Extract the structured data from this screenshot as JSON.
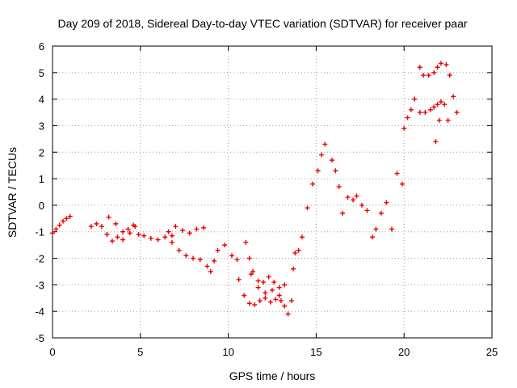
{
  "chart_data": {
    "type": "scatter",
    "title": "Day 209 of 2018, Sidereal Day-to-day VTEC variation (SDTVAR) for receiver paar",
    "xlabel": "GPS time / hours",
    "ylabel": "SDTVAR / TECUs",
    "xlim": [
      0,
      25
    ],
    "ylim": [
      -5,
      6
    ],
    "xticks": [
      "0",
      "5",
      "10",
      "15",
      "20",
      "25"
    ],
    "yticks": [
      "-5",
      "-4",
      "-3",
      "-2",
      "-1",
      "0",
      "1",
      "2",
      "3",
      "4",
      "5",
      "6"
    ],
    "grid": true,
    "marker": "+",
    "series": [
      {
        "name": "SDTVAR",
        "color": "#ee0000",
        "points": [
          [
            0.0,
            -1.05
          ],
          [
            0.2,
            -0.9
          ],
          [
            0.4,
            -0.75
          ],
          [
            0.6,
            -0.6
          ],
          [
            0.8,
            -0.5
          ],
          [
            1.0,
            -0.42
          ],
          [
            2.2,
            -0.8
          ],
          [
            2.5,
            -0.7
          ],
          [
            2.8,
            -0.8
          ],
          [
            3.1,
            -1.1
          ],
          [
            3.4,
            -1.35
          ],
          [
            3.7,
            -1.2
          ],
          [
            4.0,
            -1.0
          ],
          [
            4.3,
            -0.9
          ],
          [
            4.6,
            -0.75
          ],
          [
            4.9,
            -1.1
          ],
          [
            3.2,
            -0.45
          ],
          [
            3.6,
            -0.7
          ],
          [
            4.0,
            -1.3
          ],
          [
            4.4,
            -1.05
          ],
          [
            4.7,
            -0.8
          ],
          [
            5.2,
            -1.15
          ],
          [
            5.6,
            -1.25
          ],
          [
            6.0,
            -1.3
          ],
          [
            6.4,
            -1.2
          ],
          [
            6.8,
            -1.15
          ],
          [
            6.6,
            -1.0
          ],
          [
            7.0,
            -0.8
          ],
          [
            7.4,
            -0.95
          ],
          [
            7.8,
            -1.05
          ],
          [
            8.2,
            -0.9
          ],
          [
            8.6,
            -0.85
          ],
          [
            6.8,
            -1.4
          ],
          [
            7.2,
            -1.7
          ],
          [
            7.6,
            -1.9
          ],
          [
            8.0,
            -2.0
          ],
          [
            8.4,
            -2.05
          ],
          [
            8.8,
            -2.3
          ],
          [
            9.2,
            -2.1
          ],
          [
            9.0,
            -2.5
          ],
          [
            9.4,
            -1.7
          ],
          [
            9.8,
            -1.5
          ],
          [
            10.2,
            -1.9
          ],
          [
            10.5,
            -2.05
          ],
          [
            10.6,
            -2.8
          ],
          [
            10.9,
            -3.4
          ],
          [
            11.2,
            -3.7
          ],
          [
            11.5,
            -3.75
          ],
          [
            11.8,
            -3.6
          ],
          [
            12.1,
            -3.5
          ],
          [
            12.4,
            -3.65
          ],
          [
            12.7,
            -3.55
          ],
          [
            13.0,
            -3.6
          ],
          [
            11.0,
            -1.4
          ],
          [
            11.2,
            -2.0
          ],
          [
            11.4,
            -2.5
          ],
          [
            11.7,
            -2.85
          ],
          [
            12.0,
            -2.9
          ],
          [
            12.3,
            -2.7
          ],
          [
            12.6,
            -2.9
          ],
          [
            12.9,
            -3.1
          ],
          [
            13.2,
            -3.0
          ],
          [
            11.3,
            -2.6
          ],
          [
            11.7,
            -3.1
          ],
          [
            12.1,
            -3.3
          ],
          [
            12.5,
            -3.2
          ],
          [
            12.9,
            -3.4
          ],
          [
            13.2,
            -3.8
          ],
          [
            13.4,
            -4.1
          ],
          [
            13.6,
            -3.6
          ],
          [
            13.7,
            -2.4
          ],
          [
            13.8,
            -1.8
          ],
          [
            14.0,
            -1.7
          ],
          [
            14.2,
            -1.2
          ],
          [
            14.5,
            -0.1
          ],
          [
            14.8,
            0.8
          ],
          [
            15.1,
            1.3
          ],
          [
            15.3,
            1.9
          ],
          [
            15.5,
            2.3
          ],
          [
            15.9,
            1.7
          ],
          [
            16.1,
            1.3
          ],
          [
            16.3,
            0.7
          ],
          [
            16.5,
            -0.3
          ],
          [
            16.8,
            0.3
          ],
          [
            17.1,
            0.2
          ],
          [
            17.3,
            0.35
          ],
          [
            17.6,
            0.0
          ],
          [
            17.9,
            -0.2
          ],
          [
            18.2,
            -1.2
          ],
          [
            18.4,
            -0.9
          ],
          [
            18.7,
            -0.3
          ],
          [
            19.0,
            0.1
          ],
          [
            19.3,
            -0.9
          ],
          [
            19.6,
            1.2
          ],
          [
            19.9,
            0.8
          ],
          [
            20.0,
            2.9
          ],
          [
            20.2,
            3.3
          ],
          [
            20.4,
            3.6
          ],
          [
            20.6,
            4.0
          ],
          [
            20.9,
            3.5
          ],
          [
            21.2,
            3.5
          ],
          [
            21.5,
            3.6
          ],
          [
            21.7,
            3.7
          ],
          [
            21.9,
            3.8
          ],
          [
            22.1,
            3.9
          ],
          [
            22.3,
            3.8
          ],
          [
            22.5,
            3.2
          ],
          [
            20.9,
            5.2
          ],
          [
            21.1,
            4.9
          ],
          [
            21.4,
            4.9
          ],
          [
            21.7,
            5.0
          ],
          [
            21.9,
            5.2
          ],
          [
            22.1,
            5.35
          ],
          [
            22.4,
            5.3
          ],
          [
            22.6,
            4.9
          ],
          [
            22.8,
            4.1
          ],
          [
            23.0,
            3.5
          ],
          [
            21.8,
            2.4
          ],
          [
            22.0,
            3.2
          ]
        ]
      }
    ]
  }
}
